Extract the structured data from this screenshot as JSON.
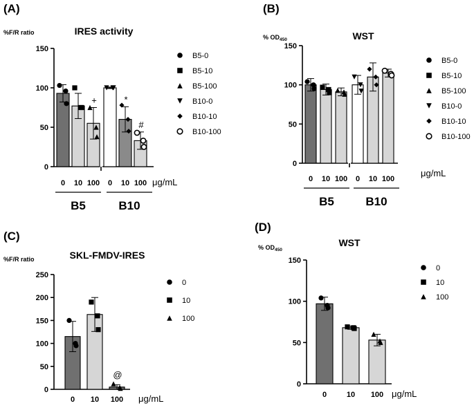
{
  "chart_data": [
    {
      "type": "bar",
      "panel_label": "(A)",
      "title": "IRES activity",
      "ylabel": "%F/R ratio",
      "xlabel": "μg/mL",
      "ylim": [
        0,
        150
      ],
      "yticks": [
        0,
        50,
        100,
        150
      ],
      "tick_labels": [
        "0",
        "10",
        "100",
        "0",
        "10",
        "100"
      ],
      "group_labels": [
        "B5",
        "B10"
      ],
      "values": [
        93,
        77,
        55,
        100,
        60,
        33
      ],
      "errors": [
        11,
        16,
        20,
        1,
        16,
        11
      ],
      "bar_colors": [
        "#707070",
        "#d6d6d6",
        "#d6d6d6",
        "#ffffff",
        "#8a8a8a",
        "#d6d6d6"
      ],
      "markers": [
        "circle",
        "square",
        "triangle",
        "triangle-down",
        "diamond",
        "open-circle"
      ],
      "points": [
        [
          103,
          96,
          80
        ],
        [
          100,
          75,
          75
        ],
        [
          75,
          50,
          38
        ],
        [
          100,
          100,
          100
        ],
        [
          78,
          60,
          45
        ],
        [
          43,
          33,
          25
        ]
      ],
      "annotations": [
        "",
        "",
        "+",
        "",
        "*",
        "#"
      ],
      "legend": [
        "B5-0",
        "B5-10",
        "B5-100",
        "B10-0",
        "B10-10",
        "B10-100"
      ]
    },
    {
      "type": "bar",
      "panel_label": "(B)",
      "title": "WST",
      "ylabel_main": "% OD",
      "ylabel_sub": "450",
      "xlabel": "μg/mL",
      "ylim": [
        0,
        150
      ],
      "yticks": [
        0,
        50,
        100,
        150
      ],
      "tick_labels": [
        "0",
        "10",
        "100",
        "0",
        "10",
        "100"
      ],
      "group_labels": [
        "B5",
        "B10"
      ],
      "values": [
        100,
        94,
        91,
        100,
        110,
        115
      ],
      "errors": [
        8,
        7,
        5,
        12,
        18,
        5
      ],
      "bar_colors": [
        "#707070",
        "#d6d6d6",
        "#d6d6d6",
        "#ffffff",
        "#d6d6d6",
        "#d6d6d6"
      ],
      "markers": [
        "circle",
        "square",
        "triangle",
        "triangle-down",
        "diamond",
        "open-circle"
      ],
      "points": [
        [
          104,
          100,
          95
        ],
        [
          97,
          94,
          90
        ],
        [
          93,
          91,
          88
        ],
        [
          110,
          100,
          92
        ],
        [
          120,
          110,
          100
        ],
        [
          118,
          114,
          112
        ]
      ],
      "annotations": [
        "",
        "",
        "",
        "",
        "",
        ""
      ],
      "legend": [
        "B5-0",
        "B5-10",
        "B5-100",
        "B10-0",
        "B10-10",
        "B10-100"
      ]
    },
    {
      "type": "bar",
      "panel_label": "(C)",
      "title": "SKL-FMDV-IRES",
      "ylabel": "%F/R ratio",
      "xlabel": "μg/mL",
      "ylim": [
        0,
        250
      ],
      "yticks": [
        0,
        50,
        100,
        150,
        200,
        250
      ],
      "tick_labels": [
        "0",
        "10",
        "100"
      ],
      "values": [
        115,
        163,
        5
      ],
      "errors": [
        33,
        37,
        5
      ],
      "bar_colors": [
        "#707070",
        "#d6d6d6",
        "#707070"
      ],
      "markers": [
        "circle",
        "square",
        "triangle"
      ],
      "points": [
        [
          150,
          100,
          95
        ],
        [
          190,
          160,
          130
        ],
        [
          12,
          4,
          2
        ]
      ],
      "annotations": [
        "",
        "",
        "@"
      ],
      "legend": [
        "0",
        "10",
        "100"
      ]
    },
    {
      "type": "bar",
      "panel_label": "(D)",
      "title": "WST",
      "ylabel_main": "% OD",
      "ylabel_sub": "450",
      "xlabel": "μg/mL",
      "ylim": [
        0,
        150
      ],
      "yticks": [
        0,
        50,
        100,
        150
      ],
      "tick_labels": [
        "0",
        "10",
        "100"
      ],
      "values": [
        97,
        68,
        53
      ],
      "errors": [
        8,
        2,
        7
      ],
      "bar_colors": [
        "#707070",
        "#d6d6d6",
        "#d6d6d6"
      ],
      "markers": [
        "circle",
        "square",
        "triangle"
      ],
      "points": [
        [
          104,
          95,
          92
        ],
        [
          69,
          68,
          67
        ],
        [
          60,
          52,
          50
        ]
      ],
      "annotations": [
        "",
        "",
        ""
      ],
      "legend": [
        "0",
        "10",
        "100"
      ]
    }
  ]
}
